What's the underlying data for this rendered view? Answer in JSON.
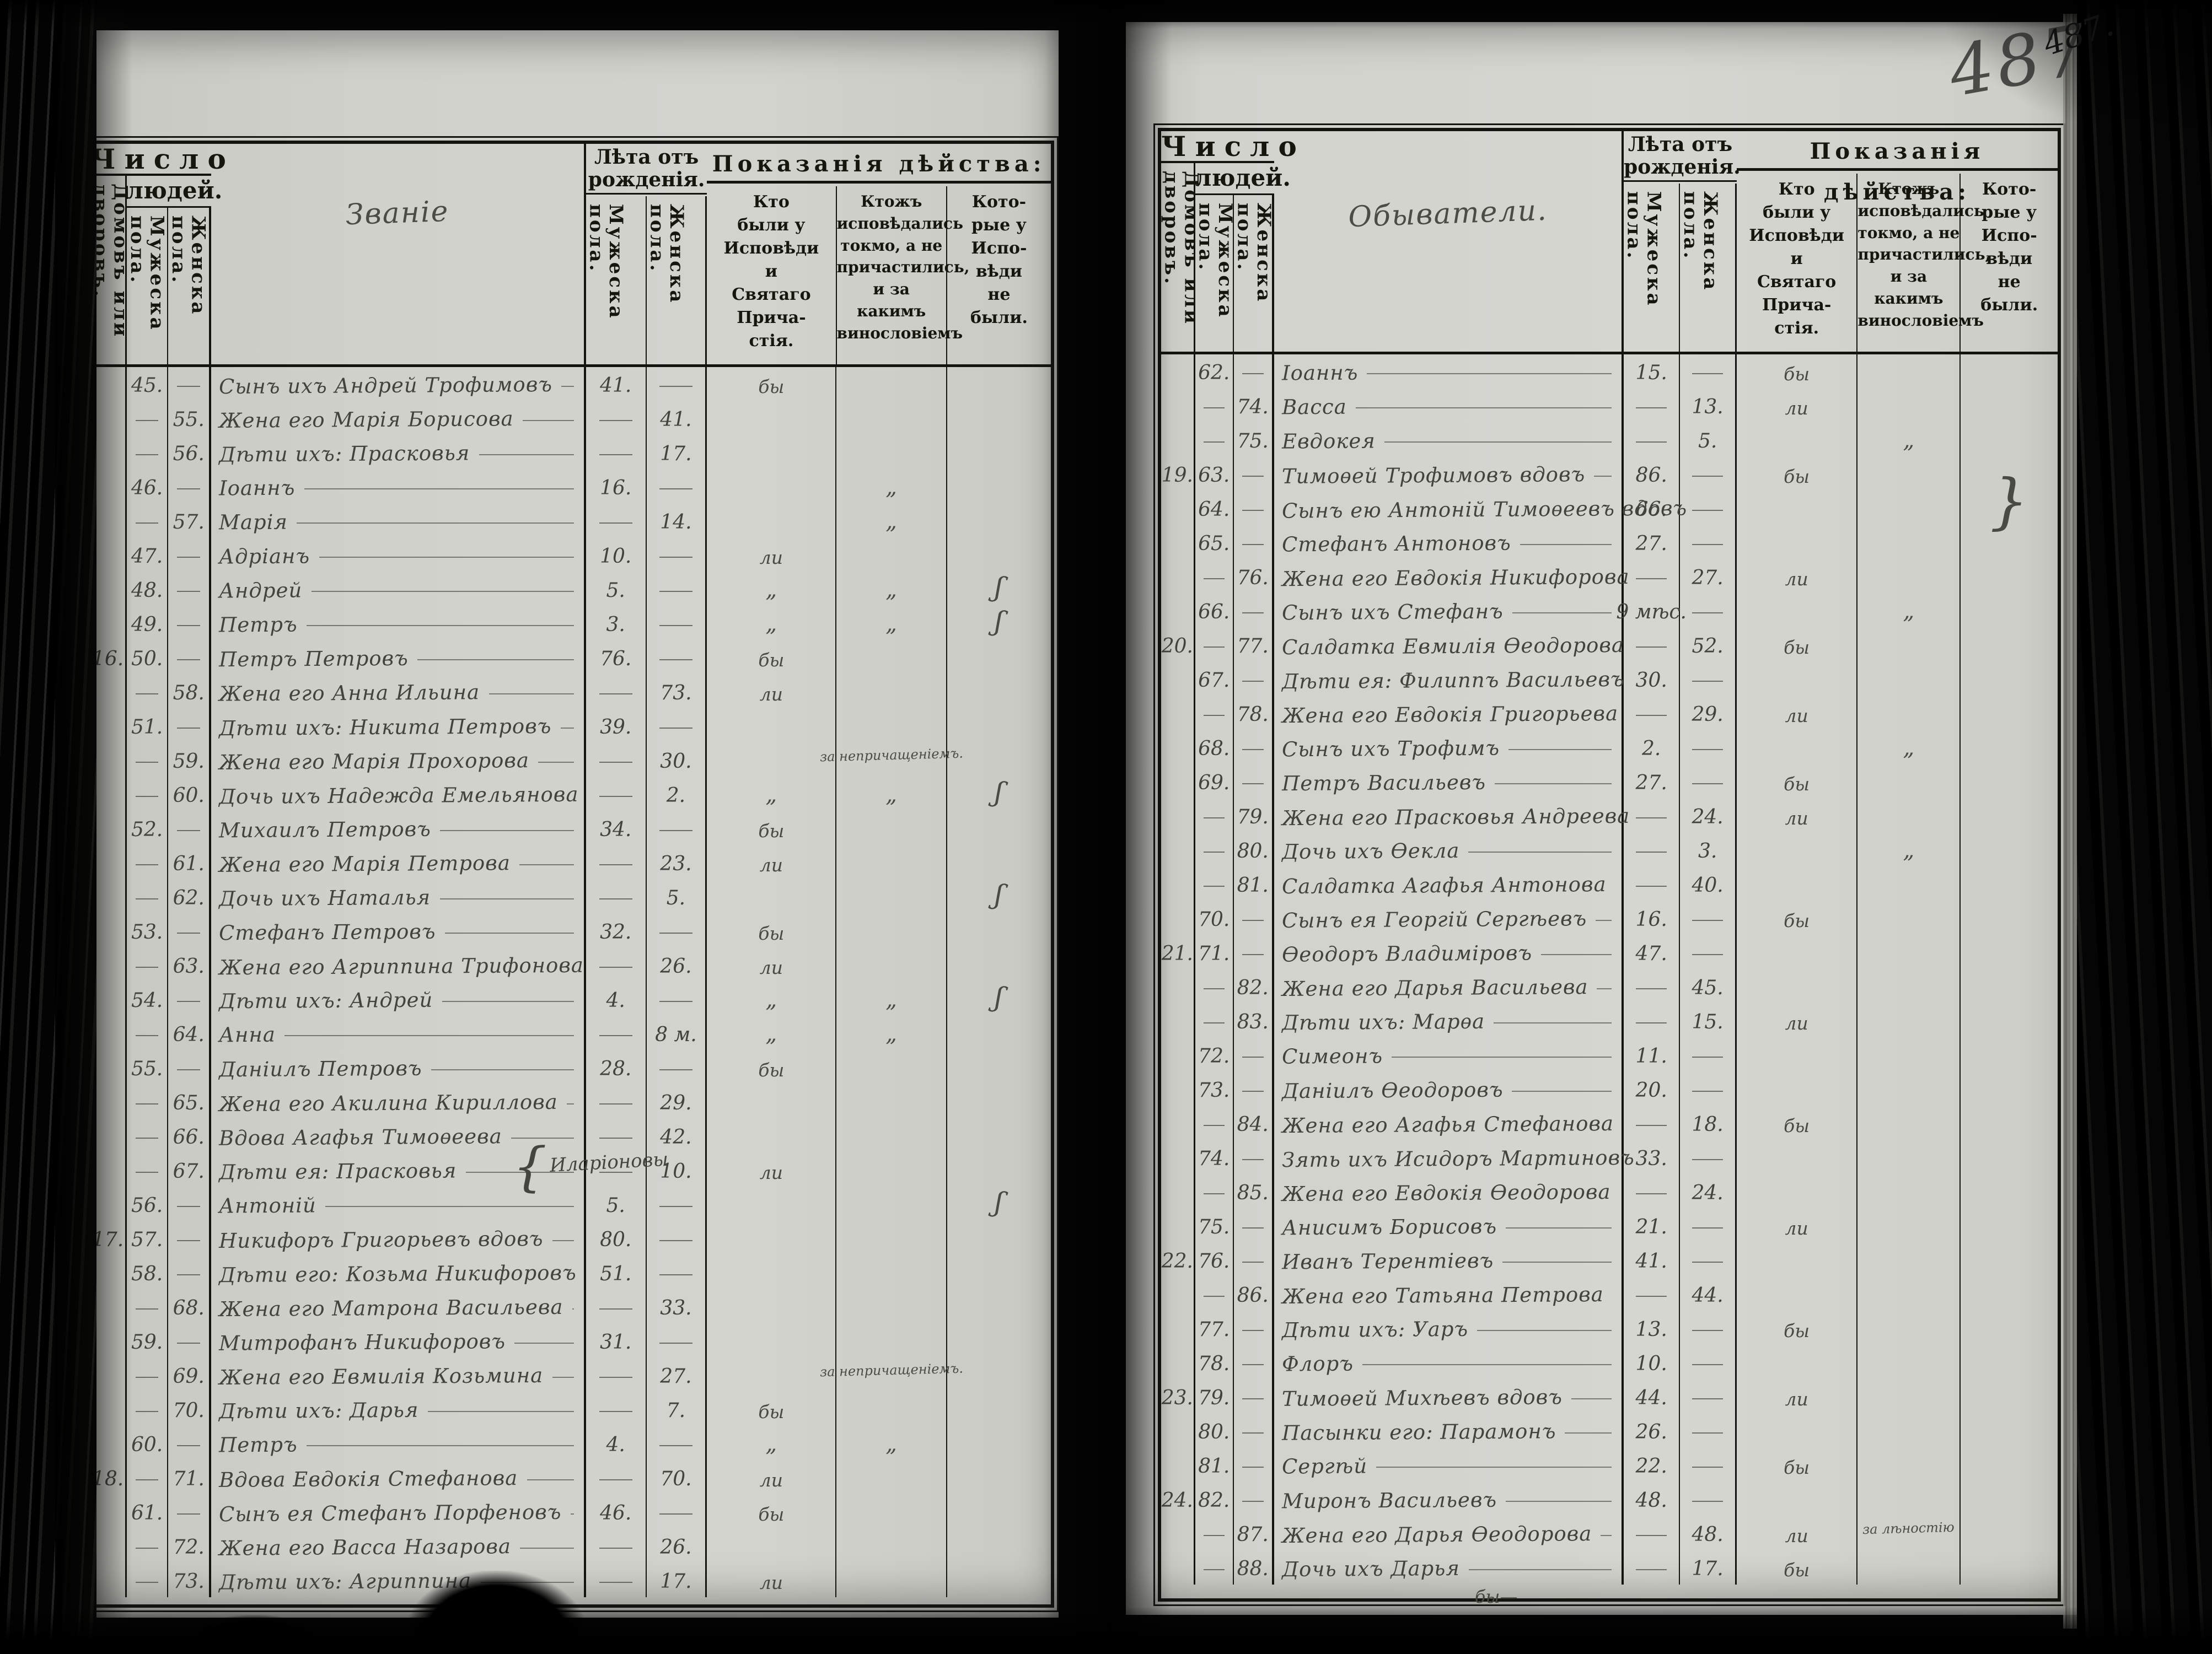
{
  "header": {
    "chislo": "Число",
    "lyudey": "людей.",
    "dvorov": "Домовъ или\nдворовъ.",
    "muzheska": "Мужеска пола.",
    "zhenska": "Женска пола.",
    "leta": "Лѣта отъ рожденія.",
    "pokazaniya": "Показанія дѣйства:",
    "p1": "Кто\nбыли у\nИсповѣди\nи\nСвятаго\nПрича-\nстія.",
    "p2": "Ктожъ\nисповѣдались\nтокмо, а не\nпричастились,\nи за какимъ\nвинословіемъ",
    "p3": "Кото-\nрые у\nИспо-\nвѣди\nне\nбыли."
  },
  "left_page": {
    "title": "Званіе",
    "rows": [
      [
        "",
        "45.",
        "",
        "Сынъ ихъ Андрей Трофимовъ",
        "41.",
        "",
        "бы",
        "",
        ""
      ],
      [
        "",
        "",
        "55.",
        "Жена его Марія Борисова",
        "",
        "41.",
        "",
        "",
        ""
      ],
      [
        "",
        "",
        "56.",
        "Дѣти ихъ: Прасковья",
        "",
        "17.",
        "",
        "",
        ""
      ],
      [
        "",
        "46.",
        "",
        "Іоаннъ",
        "16.",
        "",
        "",
        "„",
        ""
      ],
      [
        "",
        "",
        "57.",
        "Марія",
        "",
        "14.",
        "",
        "„",
        ""
      ],
      [
        "",
        "47.",
        "",
        "Адріанъ",
        "10.",
        "",
        "ли",
        "",
        ""
      ],
      [
        "",
        "48.",
        "",
        "Андрей",
        "5.",
        "",
        "„",
        "„",
        "ʃ"
      ],
      [
        "",
        "49.",
        "",
        "Петръ",
        "3.",
        "",
        "„",
        "„",
        "ʃ"
      ],
      [
        "16.",
        "50.",
        "",
        "Петръ Петровъ",
        "76.",
        "",
        "бы",
        "",
        ""
      ],
      [
        "",
        "",
        "58.",
        "Жена его Анна Ильина",
        "",
        "73.",
        "ли",
        "",
        ""
      ],
      [
        "",
        "51.",
        "",
        "Дѣти ихъ: Никита Петровъ",
        "39.",
        "",
        "",
        "",
        ""
      ],
      [
        "",
        "",
        "59.",
        "Жена его Марія Прохорова",
        "",
        "30.",
        "",
        "за непричащеніемъ.",
        ""
      ],
      [
        "",
        "",
        "60.",
        "Дочь ихъ Надежда Емельянова",
        "",
        "2.",
        "„",
        "„",
        "ʃ"
      ],
      [
        "",
        "52.",
        "",
        "Михаилъ Петровъ",
        "34.",
        "",
        "бы",
        "",
        ""
      ],
      [
        "",
        "",
        "61.",
        "Жена его Марія Петрова",
        "",
        "23.",
        "ли",
        "",
        ""
      ],
      [
        "",
        "",
        "62.",
        "Дочь ихъ Наталья",
        "",
        "5.",
        "",
        "",
        "ʃ"
      ],
      [
        "",
        "53.",
        "",
        "Стефанъ Петровъ",
        "32.",
        "",
        "бы",
        "",
        ""
      ],
      [
        "",
        "",
        "63.",
        "Жена его Агриппина Трифонова",
        "",
        "26.",
        "ли",
        "",
        ""
      ],
      [
        "",
        "54.",
        "",
        "Дѣти ихъ: Андрей",
        "4.",
        "",
        "„",
        "„",
        "ʃ"
      ],
      [
        "",
        "",
        "64.",
        "Анна",
        "",
        "8 м.",
        "„",
        "„",
        ""
      ],
      [
        "",
        "55.",
        "",
        "Даніилъ Петровъ",
        "28.",
        "",
        "бы",
        "",
        ""
      ],
      [
        "",
        "",
        "65.",
        "Жена его Акилина Кириллова",
        "",
        "29.",
        "",
        "",
        ""
      ],
      [
        "",
        "",
        "66.",
        "Вдова Агафья Тимоѳеева",
        "",
        "42.",
        "",
        "",
        ""
      ],
      [
        "",
        "",
        "67.",
        "Дѣти ея: Прасковья",
        "",
        "10.",
        "ли",
        "",
        ""
      ],
      [
        "",
        "56.",
        "",
        "Антоній",
        "5.",
        "",
        "",
        "",
        "ʃ"
      ],
      [
        "17.",
        "57.",
        "",
        "Никифоръ Григорьевъ вдовъ",
        "80.",
        "",
        "",
        "",
        ""
      ],
      [
        "",
        "58.",
        "",
        "Дѣти его: Козьма Никифоровъ",
        "51.",
        "",
        "",
        "",
        ""
      ],
      [
        "",
        "",
        "68.",
        "Жена его Матрона Васильева",
        "",
        "33.",
        "",
        "",
        ""
      ],
      [
        "",
        "59.",
        "",
        "Митрофанъ Никифоровъ",
        "31.",
        "",
        "",
        "",
        ""
      ],
      [
        "",
        "",
        "69.",
        "Жена его Евмилія Козьмина",
        "",
        "27.",
        "",
        "за непричащеніемъ.",
        ""
      ],
      [
        "",
        "",
        "70.",
        "Дѣти ихъ: Дарья",
        "",
        "7.",
        "бы",
        "",
        ""
      ],
      [
        "",
        "60.",
        "",
        "Петръ",
        "4.",
        "",
        "„",
        "„",
        ""
      ],
      [
        "18.",
        "",
        "71.",
        "Вдова Евдокія Стефанова",
        "",
        "70.",
        "ли",
        "",
        ""
      ],
      [
        "",
        "61.",
        "",
        "Сынъ ея Стефанъ Порфеновъ",
        "46.",
        "",
        "бы",
        "",
        ""
      ],
      [
        "",
        "",
        "72.",
        "Жена его Васса Назарова",
        "",
        "26.",
        "",
        "",
        ""
      ],
      [
        "",
        "",
        "73.",
        "Дѣти ихъ: Агриппина",
        "",
        "17.",
        "ли",
        "",
        ""
      ]
    ]
  },
  "right_page": {
    "title": "Обыватели.",
    "rows": [
      [
        "",
        "62.",
        "",
        "Іоаннъ",
        "15.",
        "",
        "бы",
        "",
        ""
      ],
      [
        "",
        "",
        "74.",
        "Васса",
        "",
        "13.",
        "ли",
        "",
        ""
      ],
      [
        "",
        "",
        "75.",
        "Евдокея",
        "",
        "5.",
        "",
        "„",
        ""
      ],
      [
        "19.",
        "63.",
        "",
        "Тимоѳей Трофимовъ вдовъ",
        "86.",
        "",
        "бы",
        "",
        ""
      ],
      [
        "",
        "64.",
        "",
        "Сынъ ею Антоній Тимоѳеевъ вдовъ",
        "66.",
        "",
        "",
        "",
        "}"
      ],
      [
        "",
        "65.",
        "",
        "Стефанъ Антоновъ",
        "27.",
        "",
        "",
        "",
        ""
      ],
      [
        "",
        "",
        "76.",
        "Жена его Евдокія Никифорова",
        "",
        "27.",
        "ли",
        "",
        ""
      ],
      [
        "",
        "66.",
        "",
        "Сынъ ихъ Стефанъ",
        "9 мѣс.",
        "",
        "",
        "„",
        ""
      ],
      [
        "20.",
        "",
        "77.",
        "Салдатка Евмилія Ѳеодорова",
        "",
        "52.",
        "бы",
        "",
        ""
      ],
      [
        "",
        "67.",
        "",
        "Дѣти ея: Филиппъ Васильевъ",
        "30.",
        "",
        "",
        "",
        ""
      ],
      [
        "",
        "",
        "78.",
        "Жена его Евдокія Григорьева",
        "",
        "29.",
        "ли",
        "",
        ""
      ],
      [
        "",
        "68.",
        "",
        "Сынъ ихъ Трофимъ",
        "2.",
        "",
        "",
        "„",
        ""
      ],
      [
        "",
        "69.",
        "",
        "Петръ Васильевъ",
        "27.",
        "",
        "бы",
        "",
        ""
      ],
      [
        "",
        "",
        "79.",
        "Жена его Прасковья Андреева",
        "",
        "24.",
        "ли",
        "",
        ""
      ],
      [
        "",
        "",
        "80.",
        "Дочь ихъ Ѳекла",
        "",
        "3.",
        "",
        "„",
        ""
      ],
      [
        "",
        "",
        "81.",
        "Салдатка Агафья Антонова",
        "",
        "40.",
        "",
        "",
        ""
      ],
      [
        "",
        "70.",
        "",
        "Сынъ ея Георгій Сергѣевъ",
        "16.",
        "",
        "бы",
        "",
        ""
      ],
      [
        "21.",
        "71.",
        "",
        "Ѳеодоръ Владиміровъ",
        "47.",
        "",
        "",
        "",
        ""
      ],
      [
        "",
        "",
        "82.",
        "Жена его Дарья Васильева",
        "",
        "45.",
        "",
        "",
        ""
      ],
      [
        "",
        "",
        "83.",
        "Дѣти ихъ: Марѳа",
        "",
        "15.",
        "ли",
        "",
        ""
      ],
      [
        "",
        "72.",
        "",
        "Симеонъ",
        "11.",
        "",
        "",
        "",
        ""
      ],
      [
        "",
        "73.",
        "",
        "Даніилъ Ѳеодоровъ",
        "20.",
        "",
        "",
        "",
        ""
      ],
      [
        "",
        "",
        "84.",
        "Жена его Агафья Стефанова",
        "",
        "18.",
        "бы",
        "",
        ""
      ],
      [
        "",
        "74.",
        "",
        "Зять ихъ Исидоръ Мартиновъ",
        "33.",
        "",
        "",
        "",
        ""
      ],
      [
        "",
        "",
        "85.",
        "Жена его Евдокія Ѳеодорова",
        "",
        "24.",
        "",
        "",
        ""
      ],
      [
        "",
        "75.",
        "",
        "Анисимъ Борисовъ",
        "21.",
        "",
        "ли",
        "",
        ""
      ],
      [
        "22.",
        "76.",
        "",
        "Иванъ Терентіевъ",
        "41.",
        "",
        "",
        "",
        ""
      ],
      [
        "",
        "",
        "86.",
        "Жена его Татьяна Петрова",
        "",
        "44.",
        "",
        "",
        ""
      ],
      [
        "",
        "77.",
        "",
        "Дѣти ихъ: Уаръ",
        "13.",
        "",
        "бы",
        "",
        ""
      ],
      [
        "",
        "78.",
        "",
        "Флоръ",
        "10.",
        "",
        "",
        "",
        ""
      ],
      [
        "23.",
        "79.",
        "",
        "Тимоѳей Михѣевъ вдовъ",
        "44.",
        "",
        "ли",
        "",
        ""
      ],
      [
        "",
        "80.",
        "",
        "Пасынки его: Парамонъ",
        "26.",
        "",
        "",
        "",
        ""
      ],
      [
        "",
        "81.",
        "",
        "Сергѣй",
        "22.",
        "",
        "бы",
        "",
        ""
      ],
      [
        "24.",
        "82.",
        "",
        "Миронъ Васильевъ",
        "48.",
        "",
        "",
        "",
        ""
      ],
      [
        "",
        "",
        "87.",
        "Жена его Дарья Ѳеодорова",
        "",
        "48.",
        "ли",
        "за лѣностію",
        ""
      ],
      [
        "",
        "",
        "88.",
        "Дочь ихъ Дарья",
        "",
        "17.",
        "бы",
        "",
        ""
      ]
    ]
  },
  "annotations": {
    "brace_label": "Иларіоновы",
    "footer_mark": "бы—",
    "page_number_pencil": "487",
    "page_number_ink": "487."
  }
}
